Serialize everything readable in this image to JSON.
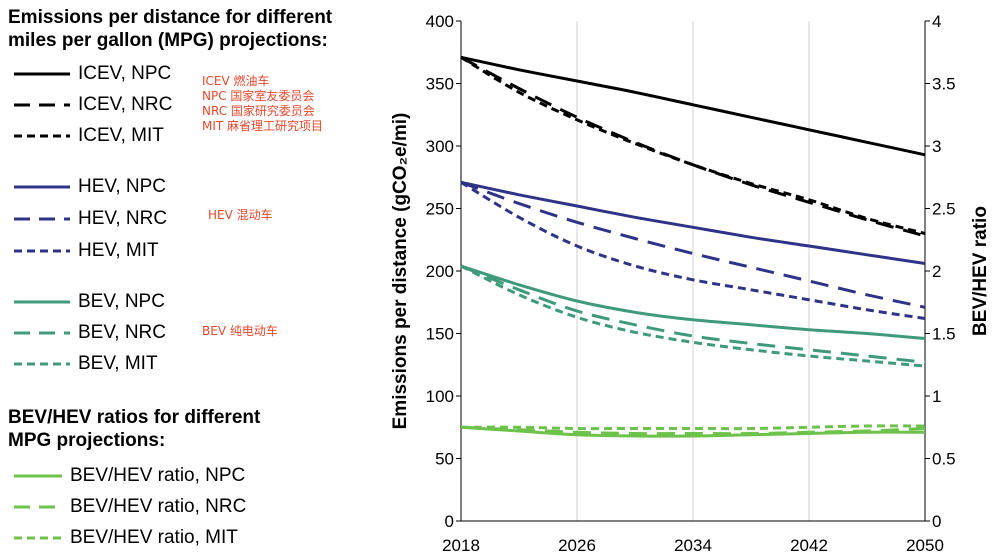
{
  "legend": {
    "title1_line1": "Emissions per distance for different",
    "title1_line2": "miles per gallon (MPG) projections:",
    "title2_line1": "BEV/HEV ratios for different",
    "title2_line2": "MPG projections:"
  },
  "notes": {
    "icev": "ICEV 燃油车",
    "npc": "NPC 国家室友委员会",
    "nrc": "NRC 国家研究委员会",
    "mit": "MIT 麻省理工研究项目",
    "hev": "HEV 混动车",
    "bev": "BEV 纯电动车"
  },
  "colors": {
    "icev": "#000000",
    "hev": "#2e3388",
    "bev": "#3f9a7a",
    "ratio": "#6cc24a",
    "note": "#e8472b"
  },
  "chart_data": {
    "type": "line",
    "x": [
      2018,
      2022,
      2026,
      2030,
      2034,
      2038,
      2042,
      2046,
      2050
    ],
    "xticks": [
      "2018",
      "2026",
      "2034",
      "2042",
      "2050"
    ],
    "xlim": [
      2018,
      2050
    ],
    "ylabel": "Emissions per distance (gCO₂e/mi)",
    "ylim": [
      0,
      400
    ],
    "yticks": [
      "0",
      "50",
      "100",
      "150",
      "200",
      "250",
      "300",
      "350",
      "400"
    ],
    "y2label": "BEV/HEV ratio",
    "y2lim": [
      0,
      4
    ],
    "y2ticks": [
      "0",
      "0.5",
      "1",
      "1.5",
      "2",
      "2.5",
      "3",
      "3.5",
      "4"
    ],
    "grid": "vertical",
    "series": [
      {
        "name": "ICEV, NPC",
        "group": "icev",
        "dash": "solid",
        "axis": "left",
        "values": [
          371,
          361,
          352,
          343,
          333,
          323,
          313,
          303,
          293
        ]
      },
      {
        "name": "ICEV, NRC",
        "group": "icev",
        "dash": "long",
        "axis": "left",
        "values": [
          371,
          346,
          323,
          303,
          285,
          269,
          255,
          241,
          228
        ]
      },
      {
        "name": "ICEV, MIT",
        "group": "icev",
        "dash": "short",
        "axis": "left",
        "values": [
          371,
          343,
          321,
          302,
          285,
          270,
          257,
          242,
          230
        ]
      },
      {
        "name": "HEV, NPC",
        "group": "hev",
        "dash": "solid",
        "axis": "left",
        "values": [
          271,
          261,
          252,
          243,
          235,
          227,
          220,
          213,
          206
        ]
      },
      {
        "name": "HEV, NRC",
        "group": "hev",
        "dash": "long",
        "axis": "left",
        "values": [
          271,
          254,
          239,
          226,
          214,
          203,
          192,
          181,
          171
        ]
      },
      {
        "name": "HEV, MIT",
        "group": "hev",
        "dash": "short",
        "axis": "left",
        "values": [
          271,
          243,
          220,
          204,
          193,
          185,
          177,
          169,
          162
        ]
      },
      {
        "name": "BEV, NPC",
        "group": "bev",
        "dash": "solid",
        "axis": "left",
        "values": [
          204,
          189,
          176,
          167,
          161,
          157,
          153,
          150,
          146
        ]
      },
      {
        "name": "BEV, NRC",
        "group": "bev",
        "dash": "long",
        "axis": "left",
        "values": [
          204,
          185,
          168,
          157,
          148,
          142,
          137,
          132,
          127
        ]
      },
      {
        "name": "BEV, MIT",
        "group": "bev",
        "dash": "short",
        "axis": "left",
        "values": [
          204,
          181,
          163,
          151,
          143,
          137,
          132,
          128,
          124
        ]
      },
      {
        "name": "BEV/HEV ratio, NPC",
        "group": "ratio",
        "dash": "solid",
        "axis": "right",
        "values": [
          0.75,
          0.72,
          0.69,
          0.68,
          0.68,
          0.69,
          0.7,
          0.71,
          0.71
        ]
      },
      {
        "name": "BEV/HEV ratio, NRC",
        "group": "ratio",
        "dash": "long",
        "axis": "right",
        "values": [
          0.75,
          0.73,
          0.71,
          0.7,
          0.7,
          0.7,
          0.71,
          0.72,
          0.74
        ]
      },
      {
        "name": "BEV/HEV ratio, MIT",
        "group": "ratio",
        "dash": "short",
        "axis": "right",
        "values": [
          0.75,
          0.75,
          0.74,
          0.74,
          0.74,
          0.74,
          0.75,
          0.76,
          0.76
        ]
      }
    ]
  }
}
